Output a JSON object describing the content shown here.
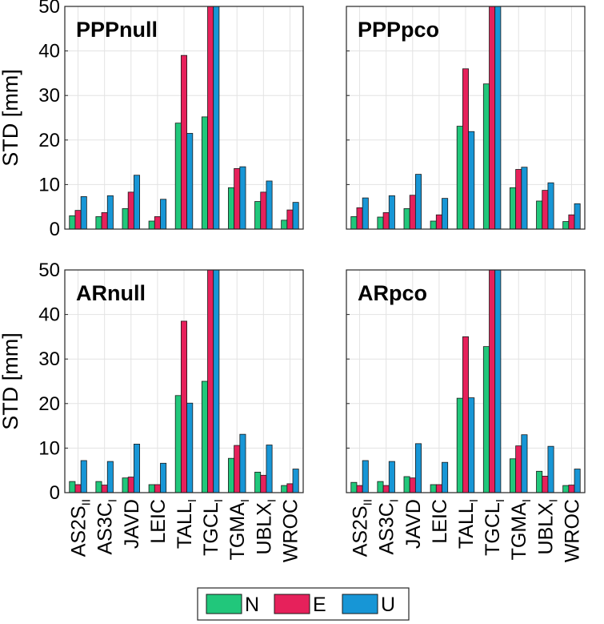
{
  "chart_data": [
    {
      "type": "bar",
      "title": "PPPnull",
      "ylabel": "STD [mm]",
      "ylim": [
        0,
        50
      ],
      "yticks": [
        "0",
        "10",
        "20",
        "30",
        "40",
        "50"
      ],
      "categories": [
        {
          "name": "AS2S",
          "sub": "II"
        },
        {
          "name": "AS3C",
          "sub": "I"
        },
        {
          "name": "JAVD",
          "sub": ""
        },
        {
          "name": "LEIC",
          "sub": ""
        },
        {
          "name": "TALL",
          "sub": "I"
        },
        {
          "name": "TGCL",
          "sub": "I"
        },
        {
          "name": "TGMA",
          "sub": "I"
        },
        {
          "name": "UBLX",
          "sub": "I"
        },
        {
          "name": "WROC",
          "sub": ""
        }
      ],
      "series": [
        {
          "name": "N",
          "values": [
            3.0,
            2.8,
            4.6,
            1.8,
            23.8,
            25.2,
            9.3,
            6.2,
            2.0
          ]
        },
        {
          "name": "E",
          "values": [
            4.2,
            3.7,
            8.3,
            2.8,
            39.0,
            52.0,
            13.6,
            8.3,
            4.3
          ]
        },
        {
          "name": "U",
          "values": [
            7.3,
            7.5,
            12.1,
            6.7,
            21.5,
            52.0,
            14.0,
            10.8,
            6.0
          ]
        }
      ]
    },
    {
      "type": "bar",
      "title": "PPPpco",
      "ylabel": "",
      "ylim": [
        0,
        50
      ],
      "yticks": [],
      "categories": [
        {
          "name": "AS2S",
          "sub": "II"
        },
        {
          "name": "AS3C",
          "sub": "I"
        },
        {
          "name": "JAVD",
          "sub": ""
        },
        {
          "name": "LEIC",
          "sub": ""
        },
        {
          "name": "TALL",
          "sub": "I"
        },
        {
          "name": "TGCL",
          "sub": "I"
        },
        {
          "name": "TGMA",
          "sub": "I"
        },
        {
          "name": "UBLX",
          "sub": "I"
        },
        {
          "name": "WROC",
          "sub": ""
        }
      ],
      "series": [
        {
          "name": "N",
          "values": [
            2.8,
            2.7,
            4.6,
            1.8,
            23.1,
            32.6,
            9.3,
            6.3,
            1.7
          ]
        },
        {
          "name": "E",
          "values": [
            4.8,
            3.7,
            7.6,
            3.2,
            36.0,
            52.0,
            13.4,
            8.7,
            3.2
          ]
        },
        {
          "name": "U",
          "values": [
            7.0,
            7.5,
            12.3,
            6.9,
            21.9,
            52.0,
            13.9,
            10.4,
            5.7
          ]
        }
      ]
    },
    {
      "type": "bar",
      "title": "ARnull",
      "ylabel": "STD [mm]",
      "ylim": [
        0,
        50
      ],
      "yticks": [
        "0",
        "10",
        "20",
        "30",
        "40",
        "50"
      ],
      "categories": [
        {
          "name": "AS2S",
          "sub": "II"
        },
        {
          "name": "AS3C",
          "sub": "I"
        },
        {
          "name": "JAVD",
          "sub": ""
        },
        {
          "name": "LEIC",
          "sub": ""
        },
        {
          "name": "TALL",
          "sub": "I"
        },
        {
          "name": "TGCL",
          "sub": "I"
        },
        {
          "name": "TGMA",
          "sub": "I"
        },
        {
          "name": "UBLX",
          "sub": "I"
        },
        {
          "name": "WROC",
          "sub": ""
        }
      ],
      "series": [
        {
          "name": "N",
          "values": [
            2.5,
            2.5,
            3.3,
            1.8,
            21.8,
            25.0,
            7.7,
            4.6,
            1.6
          ]
        },
        {
          "name": "E",
          "values": [
            1.8,
            1.7,
            3.5,
            1.8,
            38.5,
            52.0,
            10.6,
            3.9,
            2.0
          ]
        },
        {
          "name": "U",
          "values": [
            7.2,
            7.0,
            10.9,
            6.6,
            20.1,
            52.0,
            13.1,
            10.7,
            5.3
          ]
        }
      ]
    },
    {
      "type": "bar",
      "title": "ARpco",
      "ylabel": "",
      "ylim": [
        0,
        50
      ],
      "yticks": [],
      "categories": [
        {
          "name": "AS2S",
          "sub": "II"
        },
        {
          "name": "AS3C",
          "sub": "I"
        },
        {
          "name": "JAVD",
          "sub": ""
        },
        {
          "name": "LEIC",
          "sub": ""
        },
        {
          "name": "TALL",
          "sub": "I"
        },
        {
          "name": "TGCL",
          "sub": "I"
        },
        {
          "name": "TGMA",
          "sub": "I"
        },
        {
          "name": "UBLX",
          "sub": "I"
        },
        {
          "name": "WROC",
          "sub": ""
        }
      ],
      "series": [
        {
          "name": "N",
          "values": [
            2.3,
            2.5,
            3.6,
            1.8,
            21.2,
            32.8,
            7.6,
            4.8,
            1.6
          ]
        },
        {
          "name": "E",
          "values": [
            1.6,
            1.6,
            3.3,
            1.8,
            35.0,
            52.0,
            10.5,
            3.7,
            1.7
          ]
        },
        {
          "name": "U",
          "values": [
            7.2,
            7.0,
            11.0,
            6.8,
            21.3,
            52.0,
            13.0,
            10.4,
            5.3
          ]
        }
      ]
    }
  ],
  "legend": [
    {
      "label": "N",
      "color": "#21c77b"
    },
    {
      "label": "E",
      "color": "#e6215b"
    },
    {
      "label": "U",
      "color": "#1796d6"
    }
  ]
}
